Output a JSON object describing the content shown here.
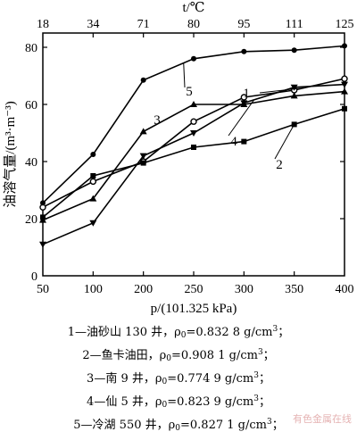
{
  "chart_data": {
    "type": "line",
    "x": [
      50,
      100,
      200,
      250,
      300,
      350,
      400
    ],
    "xlabel": "p/(101.325 kPa)",
    "top_axis": {
      "label": "t/℃",
      "ticks": [
        "18",
        "34",
        "71",
        "80",
        "95",
        "111",
        "125"
      ]
    },
    "ylabel": "油溶气量/(m³·m⁻³)",
    "ylim": [
      0,
      85
    ],
    "yticks": [
      0,
      20,
      40,
      60,
      80
    ],
    "series": [
      {
        "name": "1",
        "marker": "circle-open",
        "values": [
          24,
          33,
          40,
          54,
          62.5,
          65,
          69
        ]
      },
      {
        "name": "2",
        "marker": "square",
        "values": [
          20.5,
          35,
          39.5,
          45,
          47,
          53,
          58.5
        ]
      },
      {
        "name": "3",
        "marker": "triangle-up",
        "values": [
          19.5,
          27,
          50.5,
          60,
          60,
          63,
          64.5
        ]
      },
      {
        "name": "4",
        "marker": "triangle-down",
        "values": [
          11,
          18.5,
          42,
          50,
          60.5,
          66,
          67
        ]
      },
      {
        "name": "5",
        "marker": "circle",
        "values": [
          25.5,
          42.5,
          68.5,
          76,
          78.5,
          79,
          80.5
        ]
      }
    ]
  },
  "legend": [
    {
      "prefix": "1—油砂山 130 井，ρ",
      "sub": "0",
      "value": "=0.832 8 g/cm",
      "sup": "3",
      "end": "；"
    },
    {
      "prefix": "2—鱼卡油田，ρ",
      "sub": "0",
      "value": "=0.908 1 g/cm",
      "sup": "3",
      "end": "；"
    },
    {
      "prefix": "3—南 9 井，ρ",
      "sub": "0",
      "value": "=0.774 9 g/cm",
      "sup": "3",
      "end": "；"
    },
    {
      "prefix": "4—仙 5 井，ρ",
      "sub": "0",
      "value": "=0.823 9 g/cm",
      "sup": "3",
      "end": "；"
    },
    {
      "prefix": "5—冷湖 550 井，ρ",
      "sub": "0",
      "value": "=0.827 1 g/cm",
      "sup": "3",
      "end": "；"
    }
  ],
  "watermark": "有色金属在线"
}
